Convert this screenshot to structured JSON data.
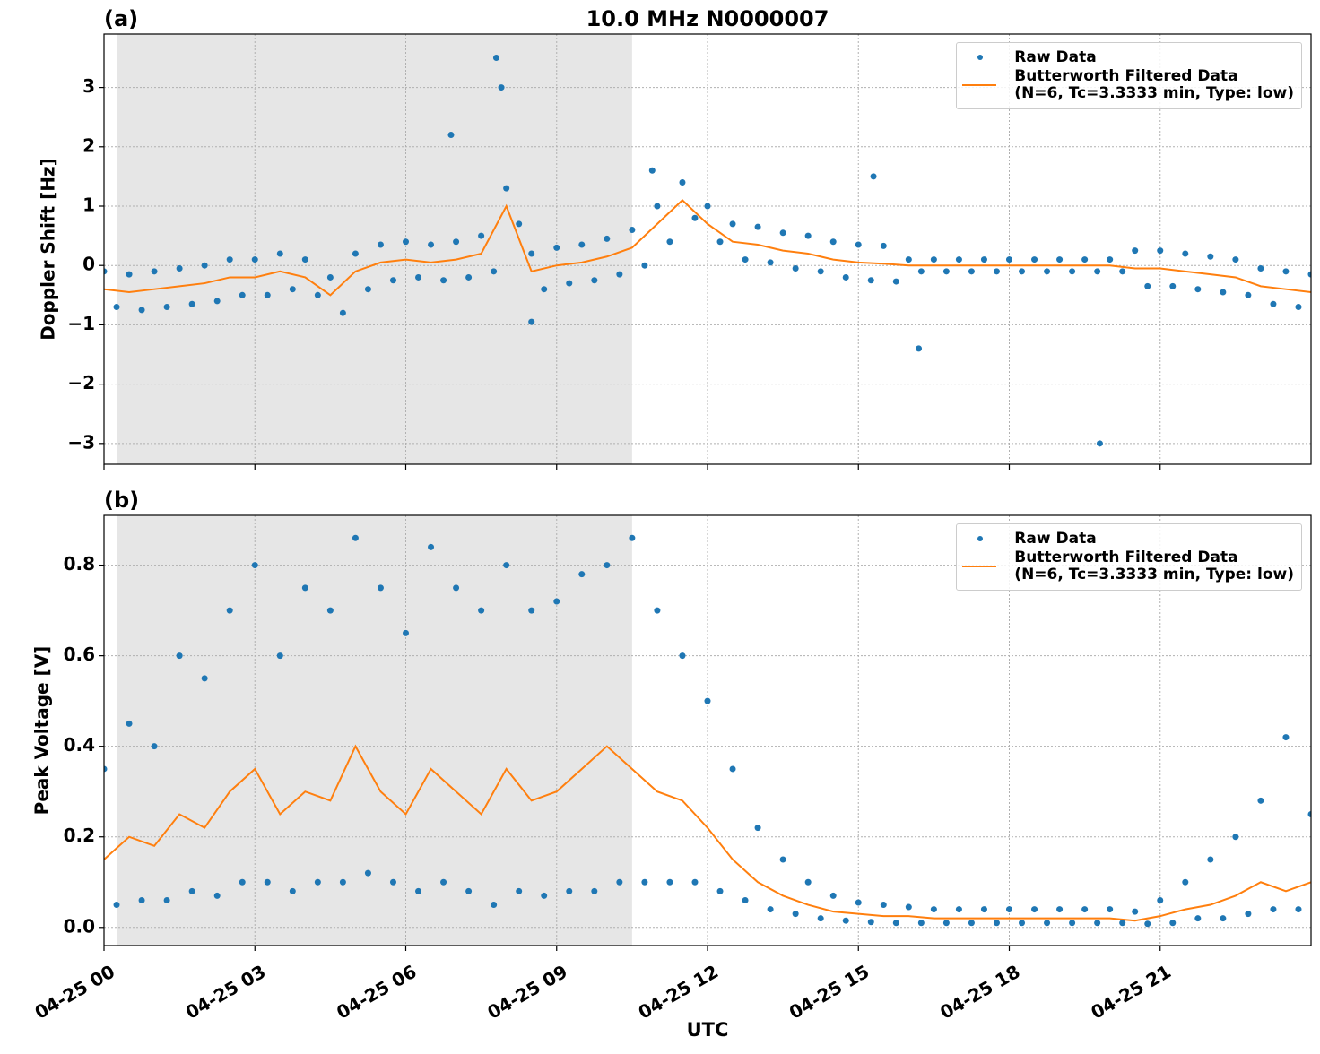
{
  "chart_data": [
    {
      "type": "line",
      "title": "10.0 MHz N0000007",
      "panel_label": "(a)",
      "y_label": "Doppler Shift [Hz]",
      "xlim": [
        0,
        24
      ],
      "xticks": [
        0,
        3,
        6,
        9,
        12,
        15,
        18,
        21
      ],
      "ylim": [
        -3.35,
        3.9
      ],
      "yticks": [
        {
          "value": -3,
          "label": "−3"
        },
        {
          "value": -2,
          "label": "−2"
        },
        {
          "value": -1,
          "label": "−1"
        },
        0,
        1,
        2,
        3
      ],
      "grid": true,
      "legend": "upper right",
      "shaded_span": [
        0.25,
        10.5
      ],
      "series": [
        {
          "name": "Raw Data",
          "type": "scatter",
          "color": "#1f77b4",
          "x": [
            0,
            0.25,
            0.5,
            0.75,
            1,
            1.25,
            1.5,
            1.75,
            2,
            2.25,
            2.5,
            2.75,
            3,
            3.25,
            3.5,
            3.75,
            4,
            4.25,
            4.5,
            4.75,
            5,
            5.25,
            5.5,
            5.75,
            6,
            6.25,
            6.5,
            6.75,
            7,
            7.25,
            7.5,
            7.75,
            8,
            8.25,
            8.5,
            8.75,
            9,
            9.25,
            9.5,
            9.75,
            10,
            10.25,
            10.5,
            10.75,
            11,
            11.25,
            11.5,
            11.75,
            12,
            12.25,
            12.5,
            12.75,
            13,
            13.25,
            13.5,
            13.75,
            14,
            14.25,
            14.5,
            14.75,
            15,
            15.25,
            15.5,
            15.75,
            16,
            16.25,
            16.5,
            16.75,
            17,
            17.25,
            17.5,
            17.75,
            18,
            18.25,
            18.5,
            18.75,
            19,
            19.25,
            19.5,
            19.75,
            20,
            20.25,
            20.5,
            20.75,
            21,
            21.25,
            21.5,
            21.75,
            22,
            22.25,
            22.5,
            22.75,
            23,
            23.25,
            23.5,
            23.75,
            24,
            7.8,
            7.9,
            6.9,
            8.5,
            10.9,
            15.3,
            16.2,
            19.8
          ],
          "values": [
            -0.1,
            -0.7,
            -0.15,
            -0.75,
            -0.1,
            -0.7,
            -0.05,
            -0.65,
            0,
            -0.6,
            0.1,
            -0.5,
            0.1,
            -0.5,
            0.2,
            -0.4,
            0.1,
            -0.5,
            -0.2,
            -0.8,
            0.2,
            -0.4,
            0.35,
            -0.25,
            0.4,
            -0.2,
            0.35,
            -0.25,
            0.4,
            -0.2,
            0.5,
            -0.1,
            1.3,
            0.7,
            0.2,
            -0.4,
            0.3,
            -0.3,
            0.35,
            -0.25,
            0.45,
            -0.15,
            0.6,
            0,
            1,
            0.4,
            1.4,
            0.8,
            1,
            0.4,
            0.7,
            0.1,
            0.65,
            0.05,
            0.55,
            -0.05,
            0.5,
            -0.1,
            0.4,
            -0.2,
            0.35,
            -0.25,
            0.33,
            -0.27,
            0.1,
            -0.1,
            0.1,
            -0.1,
            0.1,
            -0.1,
            0.1,
            -0.1,
            0.1,
            -0.1,
            0.1,
            -0.1,
            0.1,
            -0.1,
            0.1,
            -0.1,
            0.1,
            -0.1,
            0.25,
            -0.35,
            0.25,
            -0.35,
            0.2,
            -0.4,
            0.15,
            -0.45,
            0.1,
            -0.5,
            -0.05,
            -0.65,
            -0.1,
            -0.7,
            -0.15,
            3.5,
            3.0,
            2.2,
            -0.95,
            1.6,
            1.5,
            -1.4,
            -3.0
          ]
        },
        {
          "name": "Butterworth Filtered Data\n(N=6, Tc=3.3333 min, Type: low)",
          "type": "line",
          "color": "#ff7f0e",
          "x": [
            0,
            0.5,
            1,
            1.5,
            2,
            2.5,
            3,
            3.5,
            4,
            4.5,
            5,
            5.5,
            6,
            6.5,
            7,
            7.5,
            8,
            8.5,
            9,
            9.5,
            10,
            10.5,
            11,
            11.5,
            12,
            12.5,
            13,
            13.5,
            14,
            14.5,
            15,
            15.5,
            16,
            16.5,
            17,
            17.5,
            18,
            18.5,
            19,
            19.5,
            20,
            20.5,
            21,
            21.5,
            22,
            22.5,
            23,
            23.5,
            24
          ],
          "values": [
            -0.4,
            -0.45,
            -0.4,
            -0.35,
            -0.3,
            -0.2,
            -0.2,
            -0.1,
            -0.2,
            -0.5,
            -0.1,
            0.05,
            0.1,
            0.05,
            0.1,
            0.2,
            1.0,
            -0.1,
            0,
            0.05,
            0.15,
            0.3,
            0.7,
            1.1,
            0.7,
            0.4,
            0.35,
            0.25,
            0.2,
            0.1,
            0.05,
            0.03,
            0,
            0,
            0,
            0,
            0,
            0,
            0,
            0,
            0,
            -0.05,
            -0.05,
            -0.1,
            -0.15,
            -0.2,
            -0.35,
            -0.4,
            -0.45
          ]
        }
      ]
    },
    {
      "type": "line",
      "panel_label": "(b)",
      "y_label": "Peak Voltage [V]",
      "x_label": "UTC",
      "xlim": [
        0,
        24
      ],
      "xticks": [
        {
          "value": 0,
          "label": "04-25 00"
        },
        {
          "value": 3,
          "label": "04-25 03"
        },
        {
          "value": 6,
          "label": "04-25 06"
        },
        {
          "value": 9,
          "label": "04-25 09"
        },
        {
          "value": 12,
          "label": "04-25 12"
        },
        {
          "value": 15,
          "label": "04-25 15"
        },
        {
          "value": 18,
          "label": "04-25 18"
        },
        {
          "value": 21,
          "label": "04-25 21"
        }
      ],
      "ylim": [
        -0.04,
        0.91
      ],
      "yticks": [
        {
          "value": 0,
          "label": "0.0"
        },
        0.2,
        0.4,
        0.6,
        0.8
      ],
      "grid": true,
      "legend": "upper right",
      "shaded_span": [
        0.25,
        10.5
      ],
      "series": [
        {
          "name": "Raw Data",
          "type": "scatter",
          "color": "#1f77b4",
          "x": [
            0,
            0.25,
            0.5,
            0.75,
            1,
            1.25,
            1.5,
            1.75,
            2,
            2.25,
            2.5,
            2.75,
            3,
            3.25,
            3.5,
            3.75,
            4,
            4.25,
            4.5,
            4.75,
            5,
            5.25,
            5.5,
            5.75,
            6,
            6.25,
            6.5,
            6.75,
            7,
            7.25,
            7.5,
            7.75,
            8,
            8.25,
            8.5,
            8.75,
            9,
            9.25,
            9.5,
            9.75,
            10,
            10.25,
            10.5,
            10.75,
            11,
            11.25,
            11.5,
            11.75,
            12,
            12.25,
            12.5,
            12.75,
            13,
            13.25,
            13.5,
            13.75,
            14,
            14.25,
            14.5,
            14.75,
            15,
            15.25,
            15.5,
            15.75,
            16,
            16.25,
            16.5,
            16.75,
            17,
            17.25,
            17.5,
            17.75,
            18,
            18.25,
            18.5,
            18.75,
            19,
            19.25,
            19.5,
            19.75,
            20,
            20.25,
            20.5,
            20.75,
            21,
            21.25,
            21.5,
            21.75,
            22,
            22.25,
            22.5,
            22.75,
            23,
            23.25,
            23.5,
            23.75,
            24
          ],
          "values": [
            0.35,
            0.05,
            0.45,
            0.06,
            0.4,
            0.06,
            0.6,
            0.08,
            0.55,
            0.07,
            0.7,
            0.1,
            0.8,
            0.1,
            0.6,
            0.08,
            0.75,
            0.1,
            0.7,
            0.1,
            0.86,
            0.12,
            0.75,
            0.1,
            0.65,
            0.08,
            0.84,
            0.1,
            0.75,
            0.08,
            0.7,
            0.05,
            0.8,
            0.08,
            0.7,
            0.07,
            0.72,
            0.08,
            0.78,
            0.08,
            0.8,
            0.1,
            0.86,
            0.1,
            0.7,
            0.1,
            0.6,
            0.1,
            0.5,
            0.08,
            0.35,
            0.06,
            0.22,
            0.04,
            0.15,
            0.03,
            0.1,
            0.02,
            0.07,
            0.015,
            0.055,
            0.012,
            0.05,
            0.01,
            0.045,
            0.01,
            0.04,
            0.01,
            0.04,
            0.01,
            0.04,
            0.01,
            0.04,
            0.01,
            0.04,
            0.01,
            0.04,
            0.01,
            0.04,
            0.01,
            0.04,
            0.01,
            0.035,
            0.008,
            0.06,
            0.01,
            0.1,
            0.02,
            0.15,
            0.02,
            0.2,
            0.03,
            0.28,
            0.04,
            0.42,
            0.04,
            0.25
          ]
        },
        {
          "name": "Butterworth Filtered Data\n(N=6, Tc=3.3333 min, Type: low)",
          "type": "line",
          "color": "#ff7f0e",
          "x": [
            0,
            0.5,
            1,
            1.5,
            2,
            2.5,
            3,
            3.5,
            4,
            4.5,
            5,
            5.5,
            6,
            6.5,
            7,
            7.5,
            8,
            8.5,
            9,
            9.5,
            10,
            10.5,
            11,
            11.5,
            12,
            12.5,
            13,
            13.5,
            14,
            14.5,
            15,
            15.5,
            16,
            16.5,
            17,
            17.5,
            18,
            18.5,
            19,
            19.5,
            20,
            20.5,
            21,
            21.5,
            22,
            22.5,
            23,
            23.5,
            24
          ],
          "values": [
            0.15,
            0.2,
            0.18,
            0.25,
            0.22,
            0.3,
            0.35,
            0.25,
            0.3,
            0.28,
            0.4,
            0.3,
            0.25,
            0.35,
            0.3,
            0.25,
            0.35,
            0.28,
            0.3,
            0.35,
            0.4,
            0.35,
            0.3,
            0.28,
            0.22,
            0.15,
            0.1,
            0.07,
            0.05,
            0.035,
            0.03,
            0.025,
            0.025,
            0.02,
            0.02,
            0.02,
            0.02,
            0.02,
            0.02,
            0.02,
            0.02,
            0.015,
            0.025,
            0.04,
            0.05,
            0.07,
            0.1,
            0.08,
            0.1
          ]
        }
      ]
    }
  ]
}
